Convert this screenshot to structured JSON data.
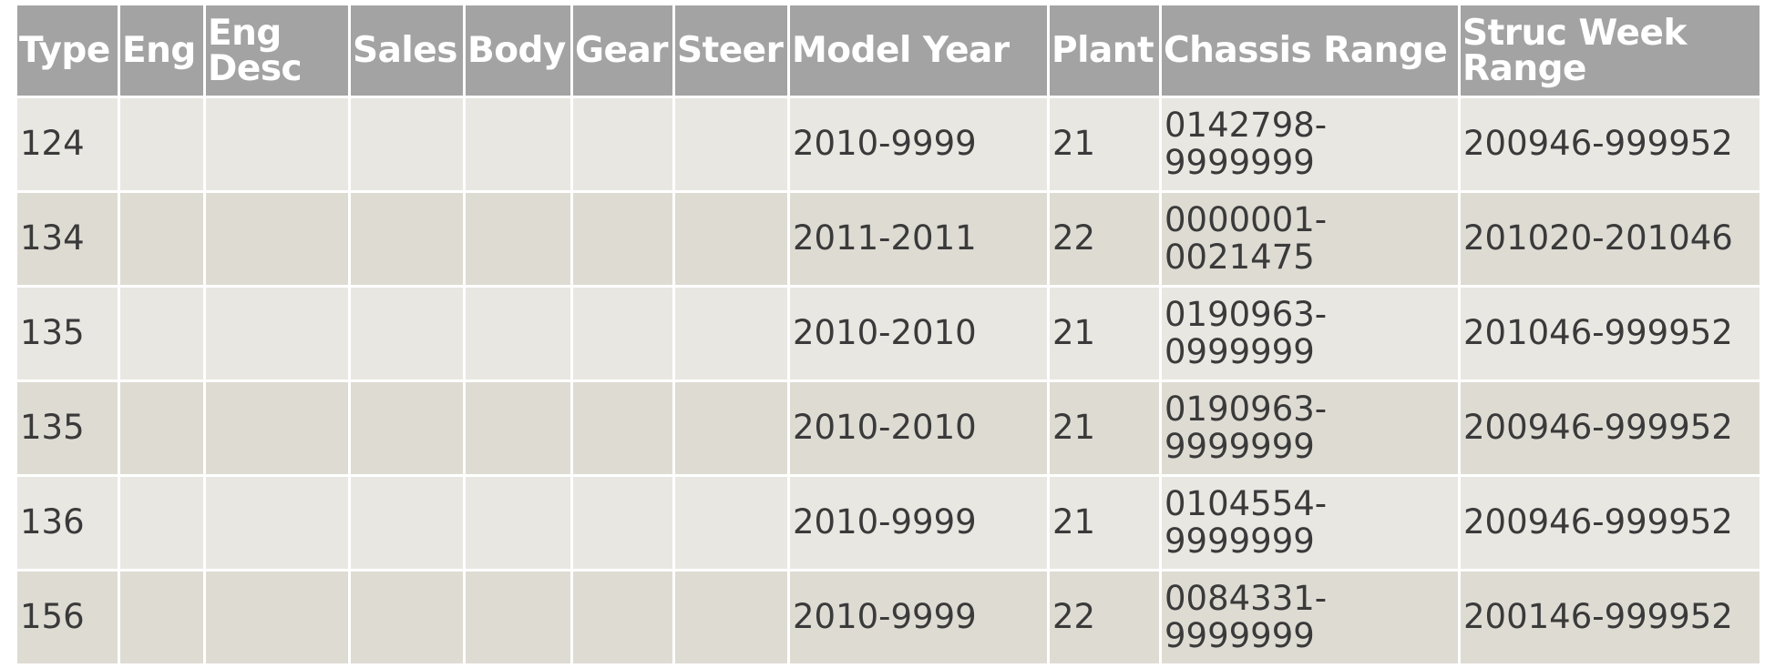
{
  "table": {
    "headers": [
      "Type",
      "Eng",
      "Eng Desc",
      "Sales",
      "Body",
      "Gear",
      "Steer",
      "Model Year",
      "Plant",
      "Chassis Range",
      "Struc Week Range"
    ],
    "rows": [
      {
        "type": "124",
        "model_year": "2010-9999",
        "plant": "21",
        "chassis_range": "0142798-9999999",
        "struc_week_range": "200946-999952"
      },
      {
        "type": "134",
        "model_year": "2011-2011",
        "plant": "22",
        "chassis_range": "0000001-0021475",
        "struc_week_range": "201020-201046"
      },
      {
        "type": "135",
        "model_year": "2010-2010",
        "plant": "21",
        "chassis_range": "0190963-0999999",
        "struc_week_range": "201046-999952"
      },
      {
        "type": "135",
        "model_year": "2010-2010",
        "plant": "21",
        "chassis_range": "0190963-9999999",
        "struc_week_range": "200946-999952"
      },
      {
        "type": "136",
        "model_year": "2010-9999",
        "plant": "21",
        "chassis_range": "0104554-9999999",
        "struc_week_range": "200946-999952"
      },
      {
        "type": "156",
        "model_year": "2010-9999",
        "plant": "22",
        "chassis_range": "0084331-9999999",
        "struc_week_range": "200146-999952"
      }
    ]
  }
}
